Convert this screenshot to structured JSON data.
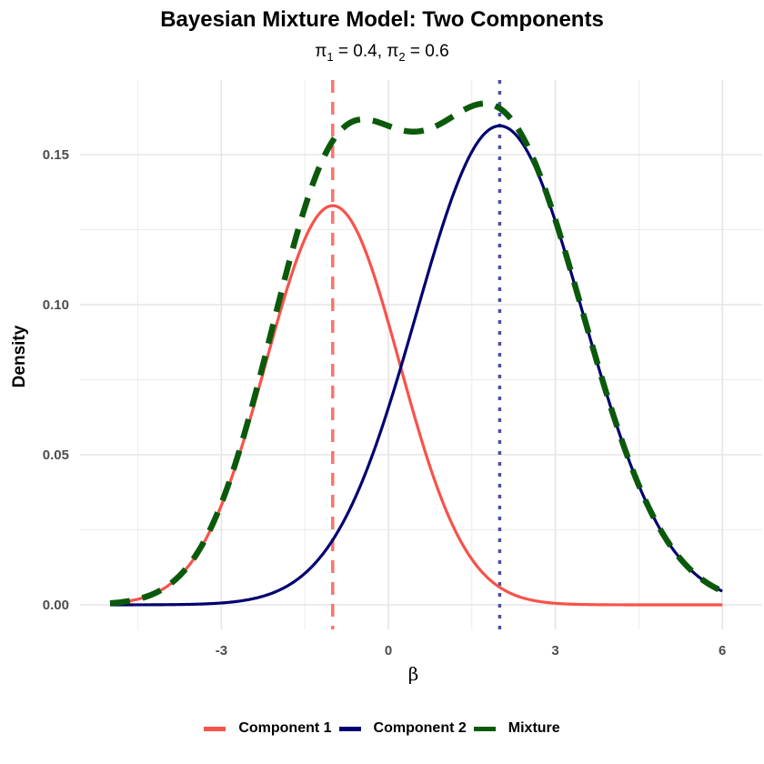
{
  "chart_data": {
    "type": "line",
    "title": "Bayesian Mixture Model: Two Components",
    "subtitle": "π₁ = 0.4, π₂ = 0.6",
    "xlabel": "β",
    "ylabel": "Density",
    "xlim": [
      -5,
      6
    ],
    "ylim": [
      0,
      0.17
    ],
    "x_ticks": [
      "-3",
      "0",
      "3",
      "6"
    ],
    "y_ticks": [
      "0.00",
      "0.05",
      "0.10",
      "0.15"
    ],
    "grid": true,
    "legend_position": "bottom",
    "series": [
      {
        "name": "Component 1",
        "color": "#F8524A",
        "style": "solid",
        "weight": 0.4,
        "mean": -1,
        "sd": 1.2,
        "peak": 0.133
      },
      {
        "name": "Component 2",
        "color": "#000070",
        "style": "solid",
        "weight": 0.6,
        "mean": 2,
        "sd": 1.5,
        "peak": 0.16
      },
      {
        "name": "Mixture",
        "color": "#0B5A0B",
        "style": "dashed",
        "local_maxima": [
          [
            -0.6,
            0.162
          ],
          [
            1.7,
            0.167
          ]
        ]
      }
    ],
    "vlines": [
      {
        "x": -1,
        "color": "#F8766D",
        "style": "dashed"
      },
      {
        "x": 2,
        "color": "#4F4FA8",
        "style": "dotted"
      }
    ]
  },
  "legend": {
    "items": [
      {
        "label": "Component 1",
        "color": "#F8524A"
      },
      {
        "label": "Component 2",
        "color": "#000070"
      },
      {
        "label": "Mixture",
        "color": "#0B5A0B"
      }
    ]
  }
}
